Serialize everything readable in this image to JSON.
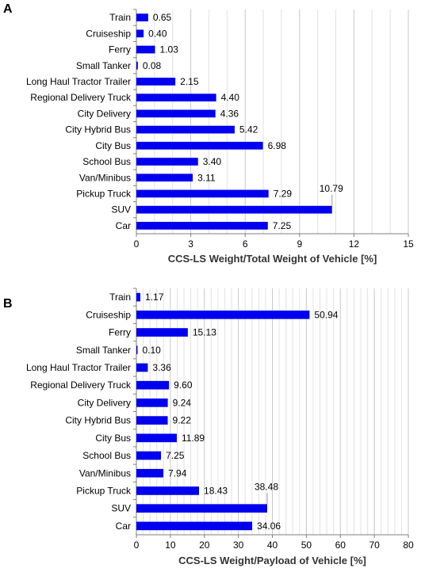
{
  "chart_data": [
    {
      "panel_label": "A",
      "type": "bar",
      "orientation": "horizontal",
      "categories": [
        "Train",
        "Cruiseship",
        "Ferry",
        "Small Tanker",
        "Long Haul Tractor Trailer",
        "Regional Delivery Truck",
        "City Delivery",
        "City Hybrid Bus",
        "City Bus",
        "School Bus",
        "Van/Minibus",
        "Pickup Truck",
        "SUV",
        "Car"
      ],
      "values": [
        0.65,
        0.4,
        1.03,
        0.08,
        2.15,
        4.4,
        4.36,
        5.42,
        6.98,
        3.4,
        3.11,
        7.29,
        10.79,
        7.25
      ],
      "data_labels": [
        "0.65",
        "0.40",
        "1.03",
        "0.08",
        "2.15",
        "4.40",
        "4.36",
        "5.42",
        "6.98",
        "3.40",
        "3.11",
        "7.29",
        "10.79",
        "7.25"
      ],
      "xlabel": "CCS-LS Weight/Total Weight of Vehicle [%]",
      "xlim": [
        0,
        15
      ],
      "xticks": [
        0,
        3,
        6,
        9,
        12,
        15
      ],
      "minor_grid_step": 1,
      "grid": true,
      "bar_color": "#0000ee"
    },
    {
      "panel_label": "B",
      "type": "bar",
      "orientation": "horizontal",
      "categories": [
        "Train",
        "Cruiseship",
        "Ferry",
        "Small Tanker",
        "Long Haul Tractor Trailer",
        "Regional Delivery Truck",
        "City Delivery",
        "City Hybrid Bus",
        "City Bus",
        "School Bus",
        "Van/Minibus",
        "Pickup Truck",
        "SUV",
        "Car"
      ],
      "values": [
        1.17,
        50.94,
        15.13,
        0.1,
        3.36,
        9.6,
        9.24,
        9.22,
        11.89,
        7.25,
        7.94,
        18.43,
        38.48,
        34.06
      ],
      "data_labels": [
        "1.17",
        "50.94",
        "15.13",
        "0.10",
        "3.36",
        "9.60",
        "9.24",
        "9.22",
        "11.89",
        "7.25",
        "7.94",
        "18.43",
        "38.48",
        "34.06"
      ],
      "xlabel": "CCS-LS Weight/Payload of Vehicle [%]",
      "xlim": [
        0,
        80
      ],
      "xticks": [
        0,
        10,
        20,
        30,
        40,
        50,
        60,
        70,
        80
      ],
      "minor_grid_step": 2,
      "grid": true,
      "bar_color": "#0000ee"
    }
  ]
}
